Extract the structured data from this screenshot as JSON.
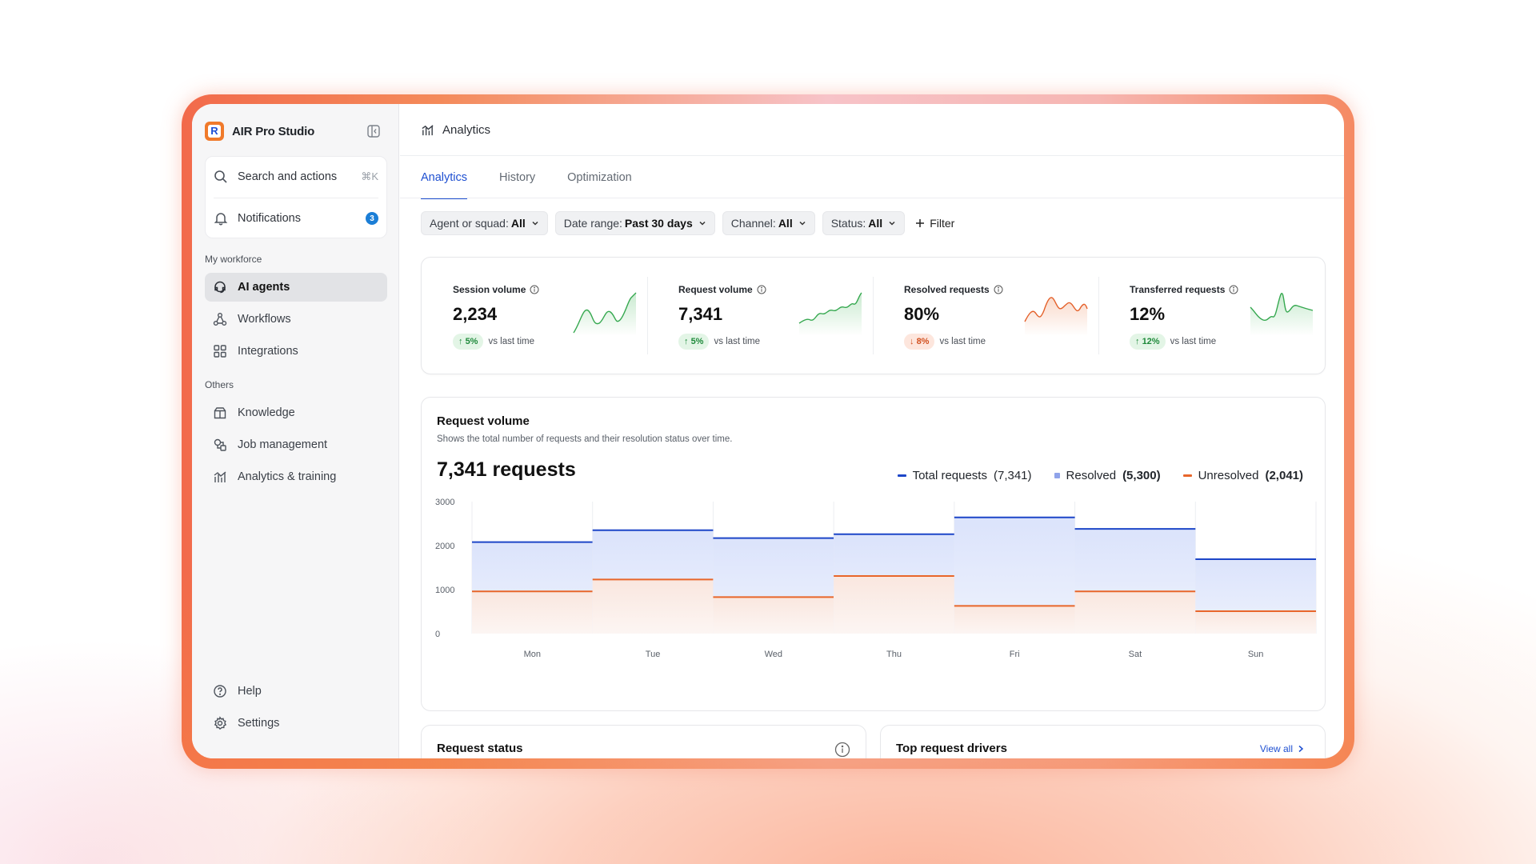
{
  "app": {
    "name": "AIR Pro Studio"
  },
  "sidebar": {
    "search_label": "Search and actions",
    "search_shortcut": "⌘K",
    "notifications_label": "Notifications",
    "notifications_count": "3",
    "section_workforce": "My workforce",
    "workforce_items": [
      {
        "label": "AI agents",
        "icon": "headset-icon",
        "active": true
      },
      {
        "label": "Workflows",
        "icon": "workflow-icon"
      },
      {
        "label": "Integrations",
        "icon": "grid-icon"
      }
    ],
    "section_others": "Others",
    "other_items": [
      {
        "label": "Knowledge",
        "icon": "knowledge-icon"
      },
      {
        "label": "Job management",
        "icon": "job-icon"
      },
      {
        "label": "Analytics & training",
        "icon": "analytics-icon"
      }
    ],
    "help_label": "Help",
    "settings_label": "Settings"
  },
  "header": {
    "title": "Analytics"
  },
  "tabs": [
    {
      "label": "Analytics",
      "active": true
    },
    {
      "label": "History"
    },
    {
      "label": "Optimization"
    }
  ],
  "filters": [
    {
      "label": "Agent or squad:",
      "value": "All"
    },
    {
      "label": "Date range:",
      "value": "Past 30 days"
    },
    {
      "label": "Channel:",
      "value": "All"
    },
    {
      "label": "Status:",
      "value": "All"
    }
  ],
  "add_filter_label": "Filter",
  "kpis": [
    {
      "title": "Session volume",
      "value": "2,234",
      "delta": "5%",
      "direction": "up",
      "note": "vs last time"
    },
    {
      "title": "Request volume",
      "value": "7,341",
      "delta": "5%",
      "direction": "up",
      "note": "vs last time"
    },
    {
      "title": "Resolved requests",
      "value": "80%",
      "delta": "8%",
      "direction": "down",
      "note": "vs last time"
    },
    {
      "title": "Transferred requests",
      "value": "12%",
      "delta": "12%",
      "direction": "up",
      "note": "vs last time"
    }
  ],
  "request_volume": {
    "title": "Request volume",
    "subtitle": "Shows the total number of requests and their resolution status over time.",
    "big_value": "7,341 requests",
    "legend": [
      {
        "name": "Total requests",
        "value": "(7,341)",
        "color": "#1d46c8",
        "bold": false
      },
      {
        "name": "Resolved",
        "value": "(5,300)",
        "color": "#8fa3ea",
        "bold": true
      },
      {
        "name": "Unresolved",
        "value": "(2,041)",
        "color": "#e8662a",
        "bold": true
      }
    ]
  },
  "chart_data": {
    "type": "area",
    "categories": [
      "Mon",
      "Tue",
      "Wed",
      "Thu",
      "Fri",
      "Sat",
      "Sun"
    ],
    "series": [
      {
        "name": "Total requests",
        "values": [
          2080,
          2350,
          2170,
          2260,
          2640,
          2380,
          1690
        ]
      },
      {
        "name": "Unresolved",
        "values": [
          960,
          1230,
          830,
          1310,
          630,
          960,
          510
        ]
      }
    ],
    "yticks": [
      0,
      1000,
      2000,
      3000
    ],
    "ylim": [
      0,
      3000
    ],
    "grid": true,
    "legend_position": "top-right"
  },
  "bottom": {
    "request_status_title": "Request status",
    "top_drivers_title": "Top request drivers",
    "view_all_label": "View all"
  },
  "colors": {
    "accent": "#1e4fd1",
    "brand": "#f07a2b",
    "positive": "#1f8a3b",
    "negative": "#d2501f"
  }
}
